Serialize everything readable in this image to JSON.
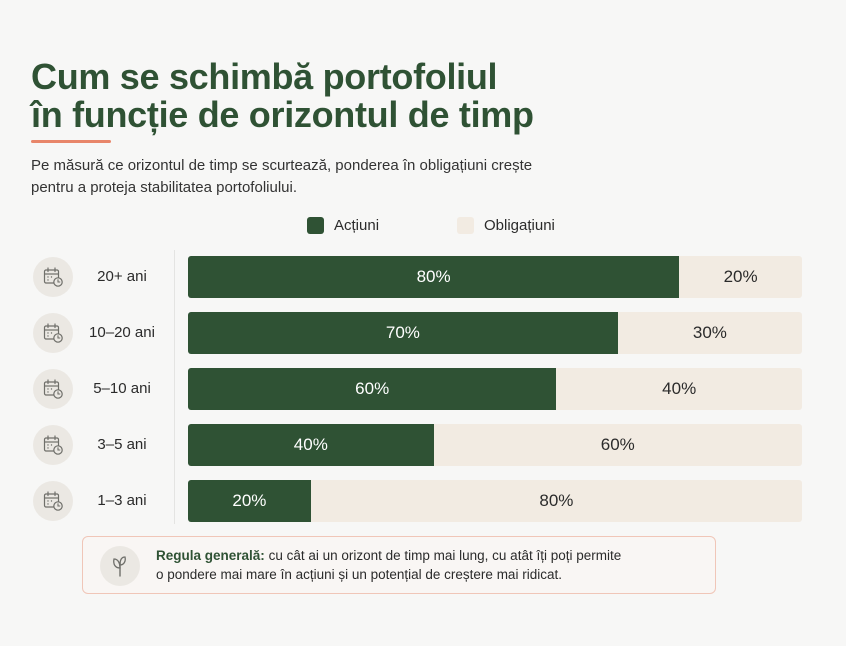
{
  "title_lines": [
    "Cum se schimbă portofoliul",
    "în funcție de orizontul de timp"
  ],
  "subtitle_lines": [
    "Pe măsură ce orizontul de timp se scurtează, ponderea în obligațiuni crește",
    "pentru a proteja stabilitatea portofoliului."
  ],
  "colors": {
    "title": "#2f5234",
    "stocks": "#2f5234",
    "bonds": "#f2ebe2",
    "accent": "#e8866a"
  },
  "row_icon": "calendar-clock-icon",
  "note": {
    "icon": "plant-icon",
    "bold": "Regula generală:",
    "line1": "cu cât ai un orizont de timp mai lung, cu atât îți poți permite",
    "line2": "o pondere mai mare în acțiuni și un potențial de creștere mai ridicat."
  },
  "chart_data": {
    "type": "bar",
    "orientation": "horizontal",
    "stacked": true,
    "legend_placement": "top",
    "categories": [
      "20+ ani",
      "10–20 ani",
      "5–10 ani",
      "3–5 ani",
      "1–3 ani"
    ],
    "series": [
      {
        "name": "Acțiuni",
        "values": [
          80,
          70,
          60,
          40,
          20
        ],
        "labels": [
          "80%",
          "70%",
          "60%",
          "40%",
          "20%"
        ]
      },
      {
        "name": "Obligațiuni",
        "values": [
          20,
          30,
          40,
          60,
          80
        ],
        "labels": [
          "20%",
          "30%",
          "40%",
          "60%",
          "80%"
        ]
      }
    ],
    "xlim": [
      0,
      100
    ]
  }
}
